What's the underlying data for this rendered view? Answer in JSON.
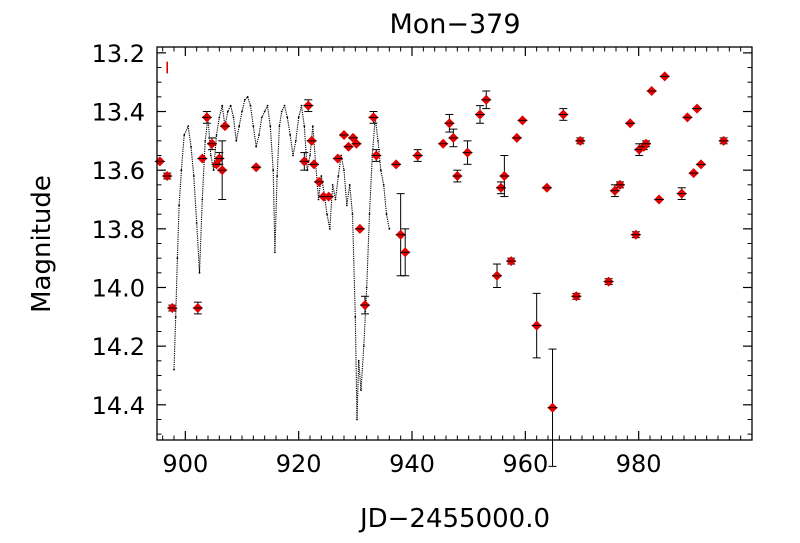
{
  "chart_data": {
    "type": "scatter",
    "title": "Mon−379",
    "xlabel": "JD−2455000.0",
    "ylabel": "Magnitude",
    "xlim": [
      895,
      1000
    ],
    "ylim": [
      14.52,
      13.18
    ],
    "y_inverted": true,
    "grid": false,
    "x_ticks": [
      900,
      920,
      940,
      960,
      980
    ],
    "x_tick_labels": [
      "900",
      "920",
      "940",
      "960",
      "980"
    ],
    "y_ticks": [
      13.2,
      13.4,
      13.6,
      13.8,
      14.0,
      14.2,
      14.4
    ],
    "y_tick_labels": [
      "13.2",
      "13.4",
      "13.6",
      "13.8",
      "14.0",
      "14.2",
      "14.4"
    ],
    "colors": {
      "points": "#e00000",
      "dense_curve": "#000000",
      "errorbars": "#000000",
      "axes": "#000000"
    },
    "typical_error_marker": {
      "x": 896.8,
      "y": 13.25,
      "err": 0.02
    },
    "series": [
      {
        "name": "dense_photometry",
        "style": "dots",
        "x": [
          898.0,
          898.3,
          898.6,
          898.9,
          899.3,
          899.8,
          900.5,
          901.0,
          901.5,
          902.0,
          902.5,
          903.0,
          903.5,
          904.0,
          904.5,
          905.0,
          905.5,
          906.0,
          906.5,
          907.0,
          907.5,
          908.0,
          908.5,
          909.0,
          909.5,
          910.0,
          910.5,
          911.0,
          911.5,
          912.0,
          912.5,
          913.0,
          913.5,
          914.0,
          914.5,
          915.0,
          915.5,
          915.8,
          916.2,
          916.6,
          917.0,
          917.5,
          918.0,
          918.5,
          919.0,
          919.5,
          920.0,
          920.5,
          921.0,
          921.5,
          922.0,
          922.5,
          923.0,
          923.5,
          924.0,
          924.5,
          925.0,
          925.5,
          926.0,
          926.5,
          927.0,
          927.5,
          928.0,
          928.5,
          929.0,
          929.5,
          930.0,
          930.3,
          930.6,
          931.0,
          931.5,
          932.0,
          932.5,
          933.0,
          933.5,
          934.0,
          934.5,
          935.0,
          935.5,
          936.0
        ],
        "y": [
          14.28,
          14.1,
          13.9,
          13.72,
          13.6,
          13.48,
          13.45,
          13.52,
          13.62,
          13.78,
          13.95,
          13.7,
          13.5,
          13.42,
          13.55,
          13.6,
          13.48,
          13.42,
          13.38,
          13.45,
          13.4,
          13.38,
          13.42,
          13.5,
          13.45,
          13.4,
          13.36,
          13.35,
          13.38,
          13.45,
          13.52,
          13.48,
          13.42,
          13.4,
          13.38,
          13.45,
          13.6,
          13.88,
          13.62,
          13.45,
          13.4,
          13.38,
          13.42,
          13.48,
          13.55,
          13.5,
          13.42,
          13.38,
          13.45,
          13.6,
          13.55,
          13.45,
          13.58,
          13.7,
          13.62,
          13.68,
          13.75,
          13.8,
          13.65,
          13.7,
          13.62,
          13.55,
          13.6,
          13.72,
          13.65,
          13.75,
          14.1,
          14.45,
          14.25,
          14.35,
          14.2,
          14.0,
          13.75,
          13.55,
          13.42,
          13.5,
          13.6,
          13.65,
          13.75,
          13.8
        ]
      },
      {
        "name": "photometry_with_errors",
        "style": "red_diamond",
        "x": [
          895.5,
          896.8,
          897.7,
          902.2,
          903.0,
          903.8,
          904.7,
          905.5,
          906.0,
          906.5,
          907.0,
          912.5,
          921.0,
          921.7,
          922.3,
          922.7,
          923.6,
          924.4,
          925.3,
          926.9,
          928.0,
          928.8,
          929.6,
          930.2,
          930.8,
          931.7,
          933.2,
          933.7,
          937.2,
          938.0,
          938.8,
          941.0,
          945.5,
          946.6,
          947.3,
          948.0,
          949.8,
          952.0,
          953.1,
          955.0,
          955.7,
          956.3,
          957.5,
          958.5,
          959.5,
          962.0,
          963.8,
          964.8,
          966.7,
          969.0,
          969.7,
          974.7,
          975.8,
          976.7,
          978.5,
          979.5,
          980.1,
          980.9,
          981.3,
          982.3,
          983.6,
          984.6,
          987.6,
          988.6,
          989.7,
          990.3,
          991.0,
          995.0
        ],
        "y": [
          13.57,
          13.62,
          14.07,
          14.07,
          13.56,
          13.42,
          13.51,
          13.58,
          13.56,
          13.6,
          13.45,
          13.59,
          13.57,
          13.38,
          13.5,
          13.58,
          13.64,
          13.69,
          13.69,
          13.56,
          13.48,
          13.52,
          13.49,
          13.51,
          13.8,
          14.06,
          13.42,
          13.55,
          13.58,
          13.82,
          13.88,
          13.55,
          13.51,
          13.44,
          13.49,
          13.62,
          13.54,
          13.41,
          13.36,
          13.96,
          13.66,
          13.62,
          13.91,
          13.49,
          13.43,
          14.13,
          13.66,
          14.41,
          13.41,
          14.03,
          13.5,
          13.98,
          13.67,
          13.65,
          13.44,
          13.82,
          13.53,
          13.52,
          13.51,
          13.33,
          13.7,
          13.28,
          13.68,
          13.42,
          13.61,
          13.39,
          13.58,
          13.5
        ],
        "err": [
          0.0,
          0.01,
          0.01,
          0.02,
          0.0,
          0.02,
          0.02,
          0.0,
          0.02,
          0.1,
          0.0,
          0.0,
          0.03,
          0.02,
          0.0,
          0.0,
          0.0,
          0.0,
          0.0,
          0.0,
          0.0,
          0.0,
          0.0,
          0.0,
          0.0,
          0.03,
          0.02,
          0.02,
          0.0,
          0.14,
          0.08,
          0.02,
          0.0,
          0.03,
          0.03,
          0.02,
          0.04,
          0.03,
          0.03,
          0.04,
          0.02,
          0.07,
          0.01,
          0.0,
          0.0,
          0.11,
          0.0,
          0.2,
          0.02,
          0.01,
          0.01,
          0.01,
          0.02,
          0.01,
          0.0,
          0.01,
          0.02,
          0.01,
          0.01,
          0.0,
          0.0,
          0.0,
          0.02,
          0.0,
          0.0,
          0.0,
          0.0,
          0.01
        ]
      }
    ]
  }
}
